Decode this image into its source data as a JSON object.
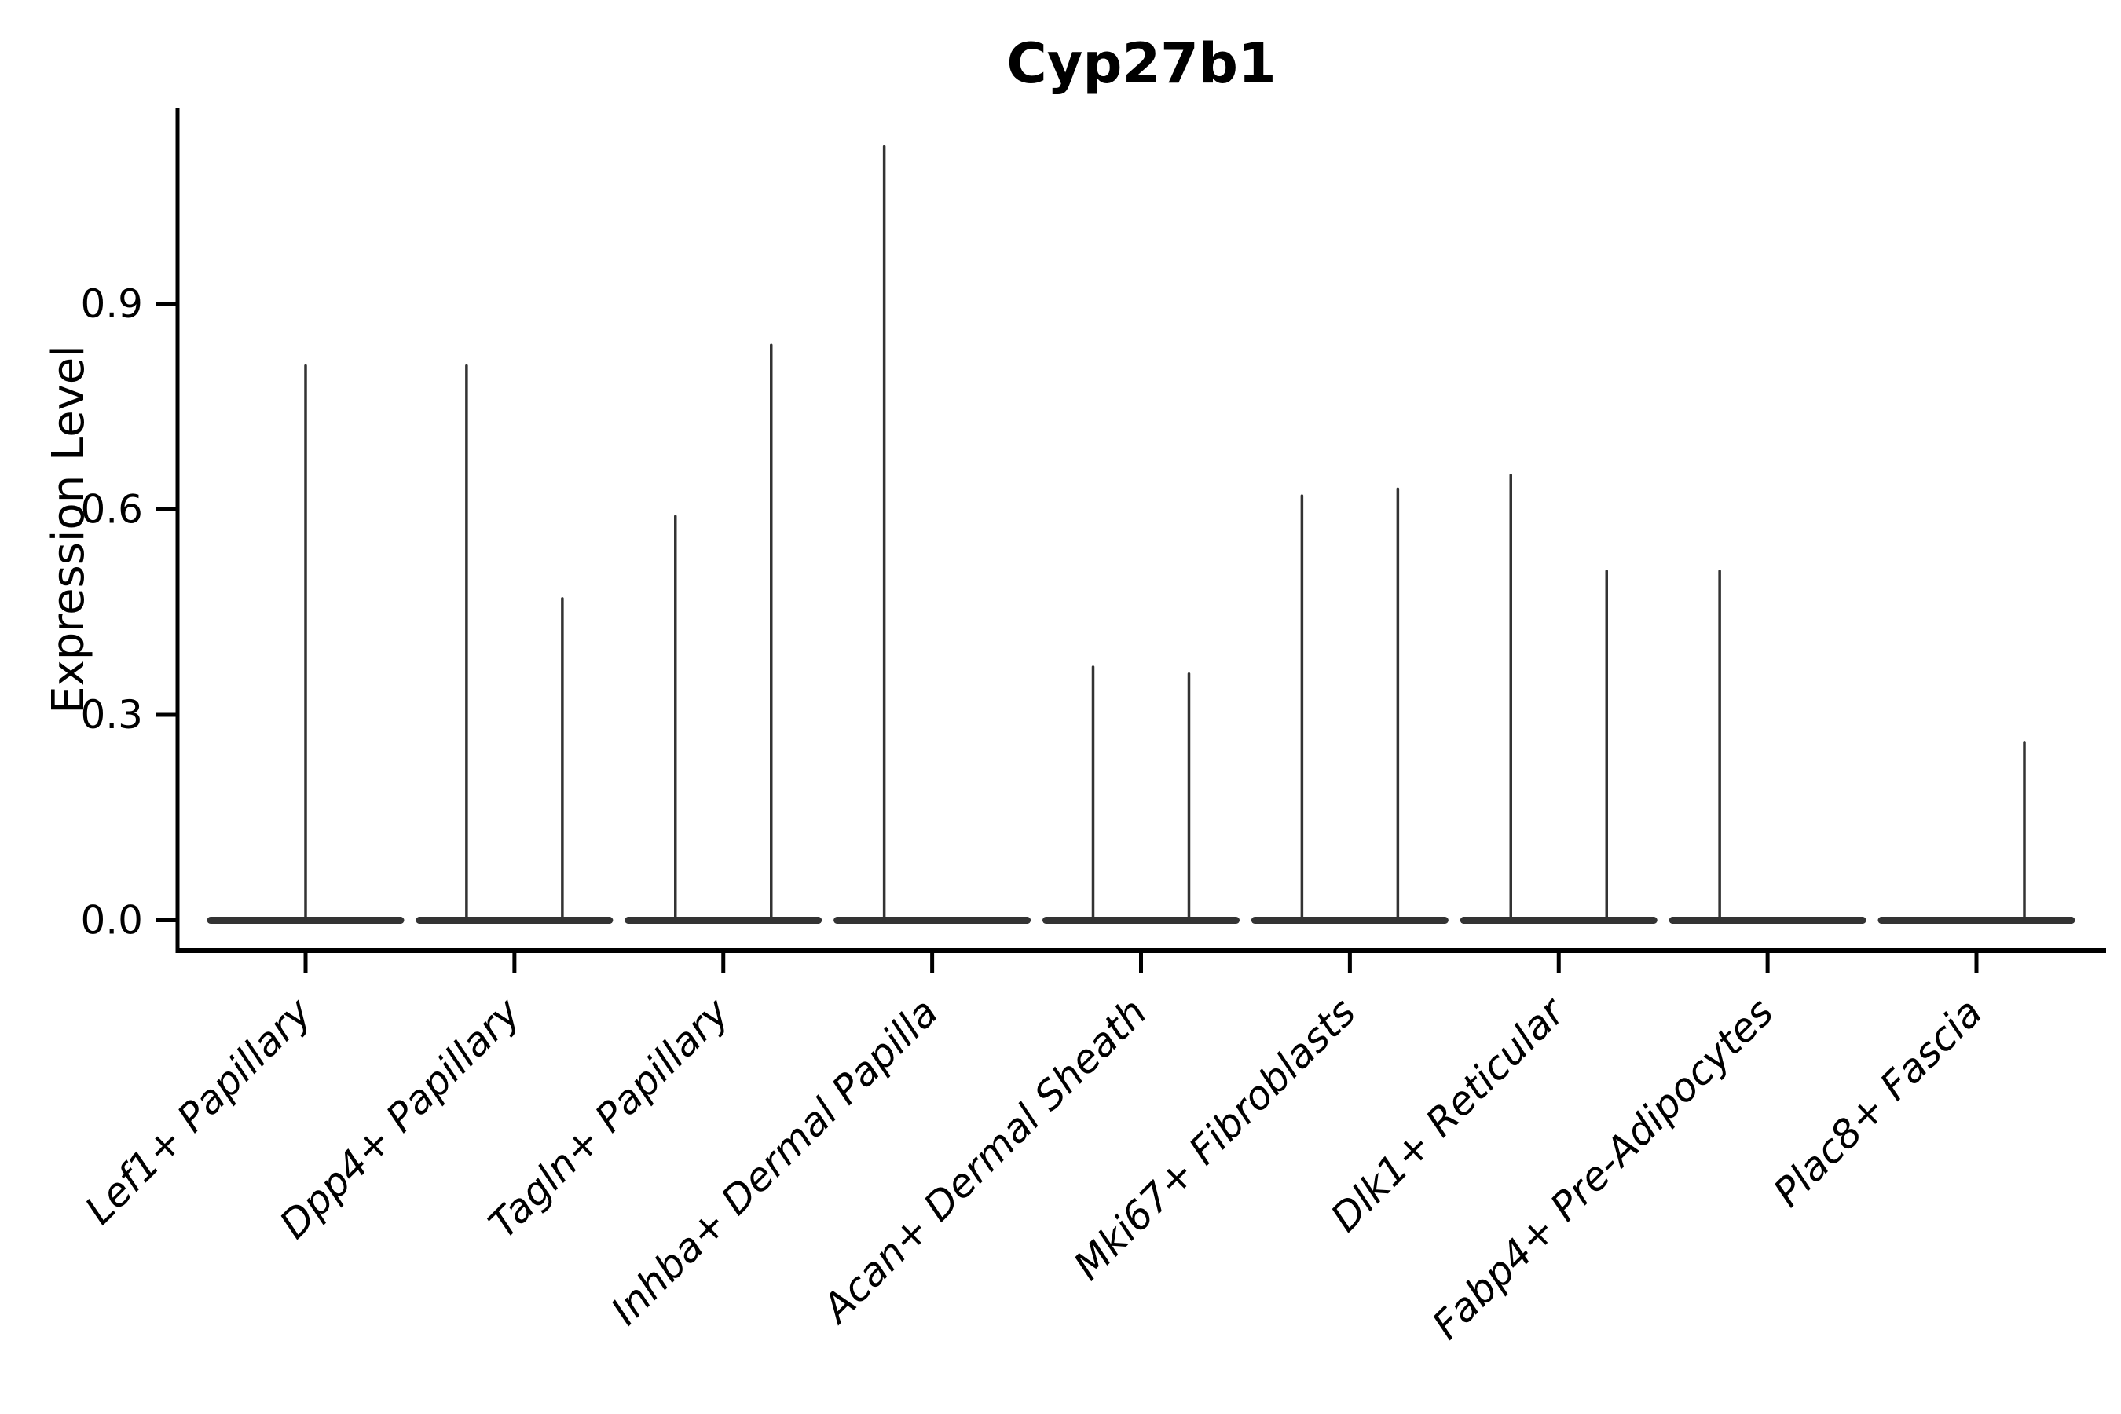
{
  "chart_data": {
    "type": "violin",
    "title": "Cyp27b1",
    "xlabel": "",
    "ylabel": "Expression Level",
    "ylim": [
      -0.04,
      1.19
    ],
    "yticks": [
      "0.0",
      "0.3",
      "0.6",
      "0.9"
    ],
    "grid": false,
    "legend": null,
    "violin_style": "flat-base-at-zero-with-thin-spike-to-max",
    "categories": [
      {
        "label": "Lef1+ Papillary",
        "spikes": [
          {
            "position": "center",
            "value": 0.81
          }
        ]
      },
      {
        "label": "Dpp4+ Papillary",
        "spikes": [
          {
            "position": "left",
            "value": 0.81
          },
          {
            "position": "right",
            "value": 0.47
          }
        ]
      },
      {
        "label": "Tagln+ Papillary",
        "spikes": [
          {
            "position": "left",
            "value": 0.59
          },
          {
            "position": "right",
            "value": 0.84
          }
        ]
      },
      {
        "label": "Inhba+ Dermal Papilla",
        "spikes": [
          {
            "position": "left",
            "value": 1.13
          }
        ]
      },
      {
        "label": "Acan+ Dermal Sheath",
        "spikes": [
          {
            "position": "left",
            "value": 0.37
          },
          {
            "position": "right",
            "value": 0.36
          }
        ]
      },
      {
        "label": "Mki67+ Fibroblasts",
        "spikes": [
          {
            "position": "left",
            "value": 0.62
          },
          {
            "position": "right",
            "value": 0.63
          }
        ]
      },
      {
        "label": "Dlk1+ Reticular",
        "spikes": [
          {
            "position": "left",
            "value": 0.65
          },
          {
            "position": "right",
            "value": 0.51
          }
        ]
      },
      {
        "label": "Fabp4+ Pre-Adipocytes",
        "spikes": [
          {
            "position": "left",
            "value": 0.51
          }
        ]
      },
      {
        "label": "Plac8+ Fascia",
        "spikes": [
          {
            "position": "right",
            "value": 0.26
          }
        ]
      }
    ],
    "colors": {
      "violin_stroke": "#333333",
      "axis": "#000000",
      "text": "#000000",
      "background": "#ffffff"
    }
  }
}
